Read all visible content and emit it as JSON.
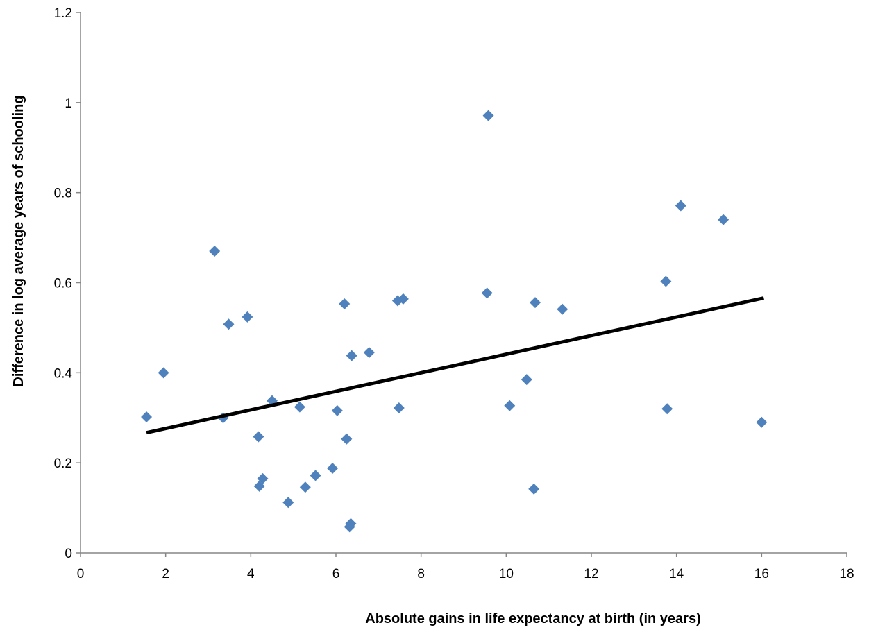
{
  "chart_data": {
    "type": "scatter",
    "title": "",
    "xlabel": "Absolute gains in life expectancy at birth (in years)",
    "ylabel": "Difference in log average years of schooling",
    "xlim": [
      0,
      18
    ],
    "ylim": [
      0,
      1.2
    ],
    "x_ticks": [
      0,
      2,
      4,
      6,
      8,
      10,
      12,
      14,
      16,
      18
    ],
    "y_ticks": [
      0,
      0.2,
      0.4,
      0.6,
      0.8,
      1,
      1.2
    ],
    "x_tick_labels": [
      "0",
      "2",
      "4",
      "6",
      "8",
      "10",
      "12",
      "14",
      "16",
      "18"
    ],
    "y_tick_labels": [
      "0",
      "0.2",
      "0.4",
      "0.6",
      "0.8",
      "1",
      "1.2"
    ],
    "grid": false,
    "legend": "none",
    "marker": "diamond",
    "marker_color": "#4F81BD",
    "trendline_color": "#000000",
    "series": [
      {
        "points": [
          {
            "x": 1.55,
            "y": 0.302
          },
          {
            "x": 1.95,
            "y": 0.4
          },
          {
            "x": 3.15,
            "y": 0.67
          },
          {
            "x": 3.35,
            "y": 0.3
          },
          {
            "x": 3.48,
            "y": 0.508
          },
          {
            "x": 3.92,
            "y": 0.524
          },
          {
            "x": 4.18,
            "y": 0.258
          },
          {
            "x": 4.2,
            "y": 0.148
          },
          {
            "x": 4.28,
            "y": 0.165
          },
          {
            "x": 4.5,
            "y": 0.338
          },
          {
            "x": 4.88,
            "y": 0.112
          },
          {
            "x": 5.15,
            "y": 0.324
          },
          {
            "x": 5.28,
            "y": 0.146
          },
          {
            "x": 5.52,
            "y": 0.172
          },
          {
            "x": 5.92,
            "y": 0.188
          },
          {
            "x": 6.03,
            "y": 0.316
          },
          {
            "x": 6.2,
            "y": 0.553
          },
          {
            "x": 6.25,
            "y": 0.253
          },
          {
            "x": 6.32,
            "y": 0.058
          },
          {
            "x": 6.35,
            "y": 0.065
          },
          {
            "x": 6.37,
            "y": 0.438
          },
          {
            "x": 6.78,
            "y": 0.445
          },
          {
            "x": 7.45,
            "y": 0.56
          },
          {
            "x": 7.48,
            "y": 0.322
          },
          {
            "x": 7.58,
            "y": 0.564
          },
          {
            "x": 9.55,
            "y": 0.577
          },
          {
            "x": 9.58,
            "y": 0.971
          },
          {
            "x": 10.08,
            "y": 0.327
          },
          {
            "x": 10.48,
            "y": 0.385
          },
          {
            "x": 10.65,
            "y": 0.142
          },
          {
            "x": 10.68,
            "y": 0.556
          },
          {
            "x": 11.32,
            "y": 0.541
          },
          {
            "x": 13.75,
            "y": 0.603
          },
          {
            "x": 13.78,
            "y": 0.32
          },
          {
            "x": 14.1,
            "y": 0.771
          },
          {
            "x": 15.1,
            "y": 0.74
          },
          {
            "x": 16.0,
            "y": 0.29
          }
        ]
      }
    ],
    "trendline": {
      "x_start": 1.55,
      "y_start": 0.267,
      "x_end": 16.05,
      "y_end": 0.566
    }
  }
}
